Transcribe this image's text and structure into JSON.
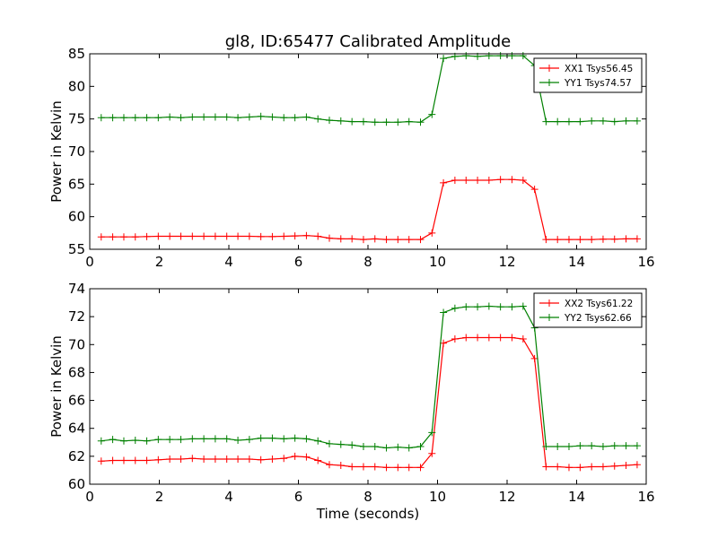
{
  "chart_data": [
    {
      "type": "line",
      "title": "gl8, ID:65477 Calibrated Amplitude",
      "xlabel": "",
      "ylabel": "Power in Kelvin",
      "xlim": [
        0,
        16
      ],
      "ylim": [
        55,
        85
      ],
      "xticks": [
        0,
        2,
        4,
        6,
        8,
        10,
        12,
        14,
        16
      ],
      "yticks": [
        55,
        60,
        65,
        70,
        75,
        80,
        85
      ],
      "grid": false,
      "legend": "top-right",
      "x": [
        0.33,
        0.66,
        0.98,
        1.31,
        1.64,
        1.97,
        2.3,
        2.62,
        2.95,
        3.28,
        3.61,
        3.94,
        4.26,
        4.59,
        4.92,
        5.25,
        5.58,
        5.9,
        6.23,
        6.56,
        6.89,
        7.22,
        7.54,
        7.87,
        8.2,
        8.53,
        8.86,
        9.18,
        9.51,
        9.84,
        10.17,
        10.5,
        10.82,
        11.15,
        11.48,
        11.81,
        12.14,
        12.46,
        12.79,
        13.12,
        13.45,
        13.78,
        14.1,
        14.43,
        14.76,
        15.09,
        15.42,
        15.74
      ],
      "series": [
        {
          "name": "XX1 Tsys56.45",
          "color": "#ff0000",
          "values": [
            56.9,
            56.9,
            56.9,
            56.9,
            56.95,
            57.0,
            57.0,
            57.0,
            57.0,
            57.0,
            57.0,
            57.0,
            57.0,
            57.0,
            56.95,
            56.95,
            57.0,
            57.05,
            57.1,
            57.0,
            56.7,
            56.6,
            56.6,
            56.5,
            56.6,
            56.5,
            56.5,
            56.5,
            56.5,
            57.5,
            65.2,
            65.6,
            65.6,
            65.6,
            65.6,
            65.7,
            65.7,
            65.6,
            64.2,
            56.5,
            56.5,
            56.5,
            56.5,
            56.5,
            56.55,
            56.55,
            56.6,
            56.6
          ]
        },
        {
          "name": "YY1 Tsys74.57",
          "color": "#008000",
          "values": [
            75.2,
            75.2,
            75.2,
            75.2,
            75.2,
            75.2,
            75.3,
            75.2,
            75.3,
            75.3,
            75.3,
            75.3,
            75.2,
            75.3,
            75.4,
            75.3,
            75.2,
            75.2,
            75.3,
            75.0,
            74.8,
            74.7,
            74.6,
            74.6,
            74.5,
            74.5,
            74.5,
            74.6,
            74.5,
            75.7,
            84.3,
            84.6,
            84.7,
            84.6,
            84.7,
            84.7,
            84.7,
            84.7,
            83.2,
            74.6,
            74.6,
            74.6,
            74.6,
            74.7,
            74.7,
            74.6,
            74.7,
            74.7
          ]
        }
      ]
    },
    {
      "type": "line",
      "title": "",
      "xlabel": "Time (seconds)",
      "ylabel": "Power in Kelvin",
      "xlim": [
        0,
        16
      ],
      "ylim": [
        60,
        74
      ],
      "xticks": [
        0,
        2,
        4,
        6,
        8,
        10,
        12,
        14,
        16
      ],
      "yticks": [
        60,
        62,
        64,
        66,
        68,
        70,
        72,
        74
      ],
      "grid": false,
      "legend": "top-right",
      "x": [
        0.33,
        0.66,
        0.98,
        1.31,
        1.64,
        1.97,
        2.3,
        2.62,
        2.95,
        3.28,
        3.61,
        3.94,
        4.26,
        4.59,
        4.92,
        5.25,
        5.58,
        5.9,
        6.23,
        6.56,
        6.89,
        7.22,
        7.54,
        7.87,
        8.2,
        8.53,
        8.86,
        9.18,
        9.51,
        9.84,
        10.17,
        10.5,
        10.82,
        11.15,
        11.48,
        11.81,
        12.14,
        12.46,
        12.79,
        13.12,
        13.45,
        13.78,
        14.1,
        14.43,
        14.76,
        15.09,
        15.42,
        15.74
      ],
      "series": [
        {
          "name": "XX2 Tsys61.22",
          "color": "#ff0000",
          "values": [
            61.65,
            61.7,
            61.7,
            61.7,
            61.7,
            61.75,
            61.8,
            61.8,
            61.85,
            61.8,
            61.8,
            61.8,
            61.8,
            61.8,
            61.75,
            61.8,
            61.85,
            62.0,
            61.95,
            61.7,
            61.4,
            61.35,
            61.25,
            61.25,
            61.25,
            61.2,
            61.2,
            61.2,
            61.2,
            62.2,
            70.1,
            70.4,
            70.5,
            70.5,
            70.5,
            70.5,
            70.5,
            70.4,
            69.0,
            61.25,
            61.25,
            61.2,
            61.2,
            61.25,
            61.25,
            61.3,
            61.35,
            61.4
          ]
        },
        {
          "name": "YY2 Tsys62.66",
          "color": "#008000",
          "values": [
            63.1,
            63.2,
            63.1,
            63.15,
            63.1,
            63.2,
            63.2,
            63.2,
            63.25,
            63.25,
            63.25,
            63.25,
            63.15,
            63.2,
            63.3,
            63.3,
            63.25,
            63.3,
            63.25,
            63.1,
            62.9,
            62.85,
            62.8,
            62.7,
            62.7,
            62.6,
            62.65,
            62.6,
            62.7,
            63.7,
            72.3,
            72.6,
            72.7,
            72.7,
            72.75,
            72.7,
            72.7,
            72.75,
            71.2,
            62.7,
            62.7,
            62.7,
            62.75,
            62.75,
            62.7,
            62.75,
            62.75,
            62.75
          ]
        }
      ]
    }
  ]
}
